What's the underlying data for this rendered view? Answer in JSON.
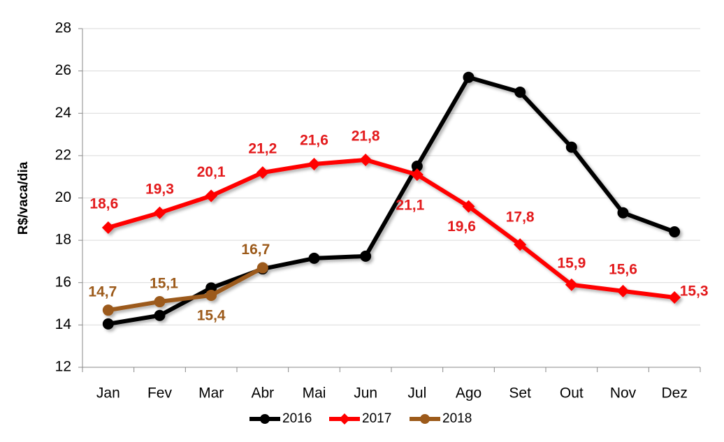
{
  "chart_data": {
    "type": "line",
    "y_label": "R$/vaca/dia",
    "categories": [
      "Jan",
      "Fev",
      "Mar",
      "Abr",
      "Mai",
      "Jun",
      "Jul",
      "Ago",
      "Set",
      "Out",
      "Nov",
      "Dez"
    ],
    "series": [
      {
        "name": "2016",
        "color": "#000000",
        "marker": "circle",
        "values": [
          14.05,
          14.45,
          15.75,
          16.65,
          17.15,
          17.25,
          21.5,
          25.7,
          25.0,
          22.4,
          19.3,
          18.4
        ]
      },
      {
        "name": "2017",
        "color": "#ff0000",
        "marker": "diamond",
        "values": [
          18.6,
          19.3,
          20.1,
          21.2,
          21.6,
          21.8,
          21.1,
          19.6,
          17.8,
          15.9,
          15.6,
          15.3
        ],
        "value_labels": [
          "18,6",
          "19,3",
          "20,1",
          "21,2",
          "21,6",
          "21,8",
          "21,1",
          "19,6",
          "17,8",
          "15,9",
          "15,6",
          "15,3"
        ]
      },
      {
        "name": "2018",
        "color": "#9c5a1a",
        "marker": "circle",
        "values": [
          14.7,
          15.1,
          15.4,
          16.7,
          null,
          null,
          null,
          null,
          null,
          null,
          null,
          null
        ],
        "value_labels": [
          "14,7",
          "15,1",
          "15,4",
          "16,7",
          null,
          null,
          null,
          null,
          null,
          null,
          null,
          null
        ]
      }
    ],
    "ylim": [
      12,
      28
    ],
    "yticks": [
      12,
      14,
      16,
      18,
      20,
      22,
      24,
      26,
      28
    ],
    "grid": true,
    "legend": "bottom"
  }
}
